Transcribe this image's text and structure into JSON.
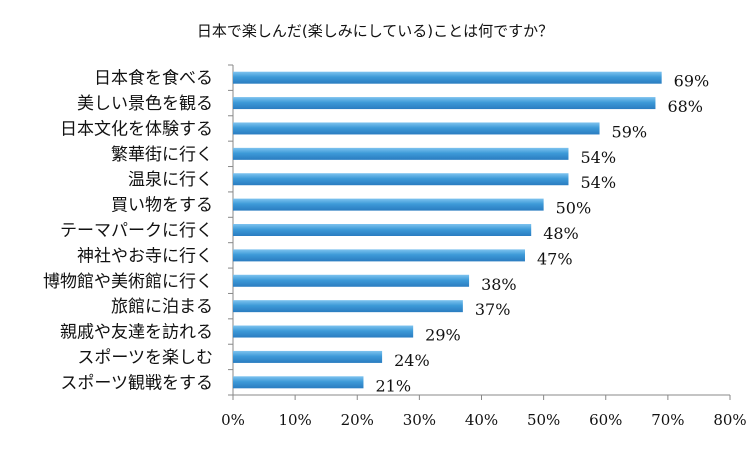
{
  "chart_data": {
    "type": "bar",
    "orientation": "horizontal",
    "title": "日本で楽しんだ(楽しみにしている)ことは何ですか？",
    "categories": [
      "日本食を食べる",
      "美しい景色を観る",
      "日本文化を体験する",
      "繁華街に行く",
      "温泉に行く",
      "買い物をする",
      "テーマパークに行く",
      "神社やお寺に行く",
      "博物館や美術館に行く",
      "旅館に泊まる",
      "親戚や友達を訪れる",
      "スポーツを楽しむ",
      "スポーツ観戦をする"
    ],
    "values": [
      69,
      68,
      59,
      54,
      54,
      50,
      48,
      47,
      38,
      37,
      29,
      24,
      21
    ],
    "data_labels": [
      "69%",
      "68%",
      "59%",
      "54%",
      "54%",
      "50%",
      "48%",
      "47%",
      "38%",
      "37%",
      "29%",
      "24%",
      "21%"
    ],
    "xlim": [
      0,
      80
    ],
    "x_ticks": [
      "0%",
      "10%",
      "20%",
      "30%",
      "40%",
      "50%",
      "60%",
      "70%",
      "80%"
    ],
    "grid": false,
    "legend": "none",
    "colors": {
      "bar_top": "#7ec3ef",
      "bar_mid": "#3d9ad8",
      "bar_bottom": "#2a7cc0",
      "axis": "#888888"
    }
  }
}
